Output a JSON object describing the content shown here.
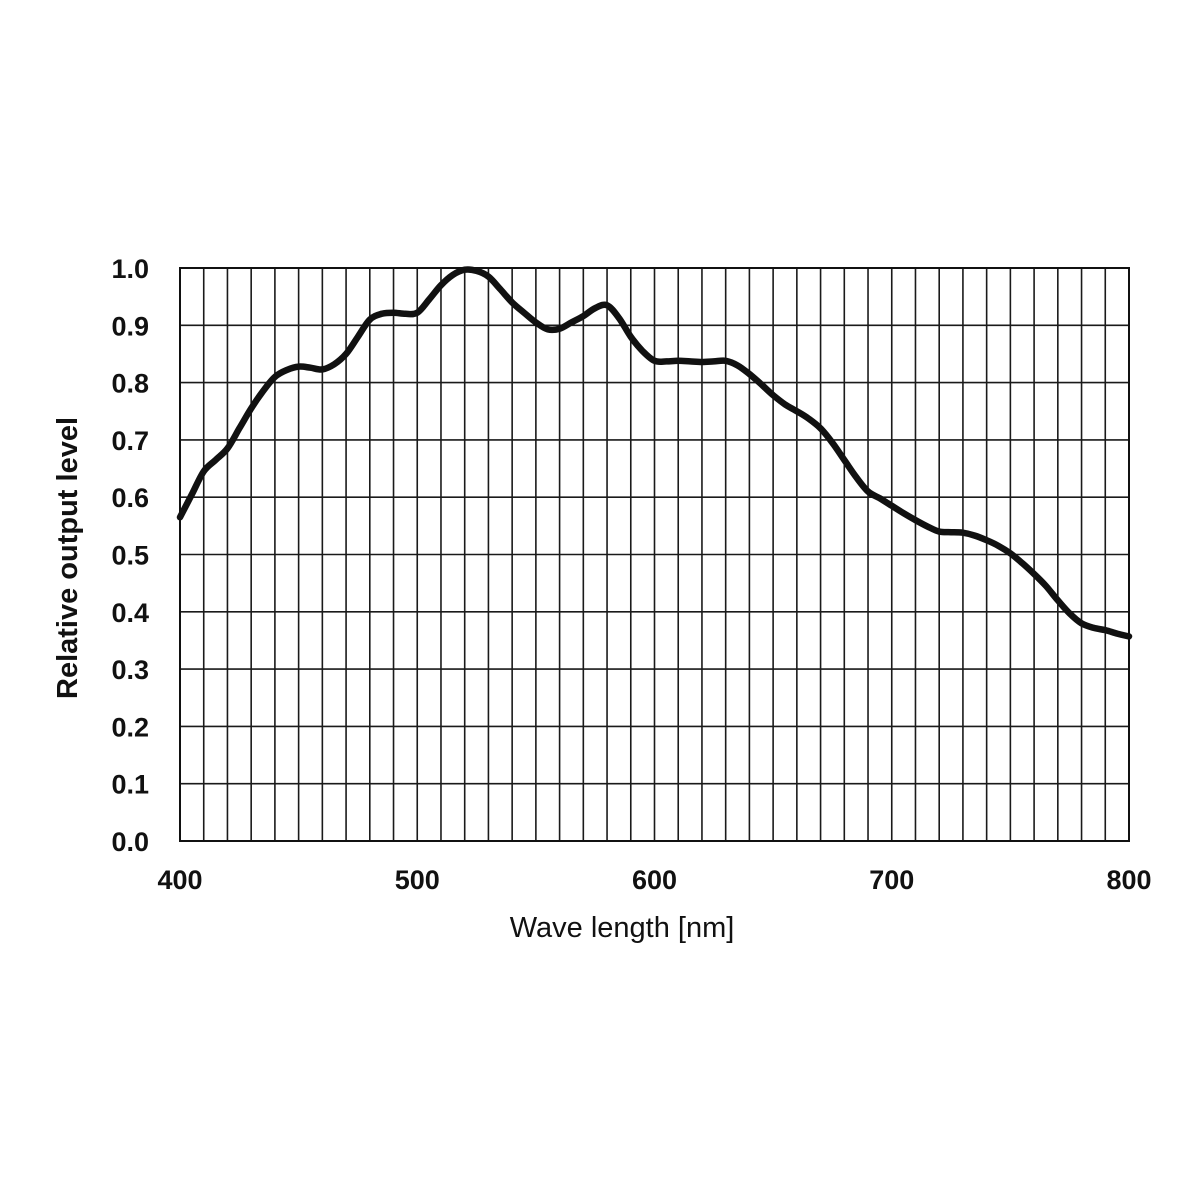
{
  "chart_data": {
    "type": "line",
    "xlabel": "Wave length [nm]",
    "ylabel": "Relative output level",
    "xlim": [
      400,
      800
    ],
    "ylim": [
      0.0,
      1.0
    ],
    "x_ticks": [
      400,
      500,
      600,
      700,
      800
    ],
    "x_tick_labels": [
      "400",
      "500",
      "600",
      "700",
      "800"
    ],
    "y_ticks": [
      0.0,
      0.1,
      0.2,
      0.3,
      0.4,
      0.5,
      0.6,
      0.7,
      0.8,
      0.9,
      1.0
    ],
    "y_tick_labels": [
      "0.0",
      "0.1",
      "0.2",
      "0.3",
      "0.4",
      "0.5",
      "0.6",
      "0.7",
      "0.8",
      "0.9",
      "1.0"
    ],
    "grid": true,
    "x_minor_step": 10,
    "line_color": "#111111",
    "grid_color": "#1a1a1a",
    "series": [
      {
        "x": [
          400,
          405,
          410,
          415,
          420,
          425,
          430,
          435,
          440,
          445,
          450,
          455,
          460,
          465,
          470,
          475,
          480,
          485,
          490,
          495,
          500,
          505,
          510,
          515,
          520,
          525,
          530,
          535,
          540,
          545,
          550,
          555,
          560,
          565,
          570,
          575,
          580,
          585,
          590,
          595,
          600,
          605,
          610,
          615,
          620,
          625,
          630,
          635,
          640,
          645,
          650,
          655,
          660,
          665,
          670,
          675,
          680,
          685,
          690,
          695,
          700,
          705,
          710,
          715,
          720,
          725,
          730,
          735,
          740,
          745,
          750,
          755,
          760,
          765,
          770,
          775,
          780,
          785,
          790,
          795,
          800
        ],
        "values": [
          0.565,
          0.605,
          0.645,
          0.665,
          0.685,
          0.72,
          0.755,
          0.785,
          0.81,
          0.822,
          0.828,
          0.826,
          0.823,
          0.832,
          0.85,
          0.88,
          0.91,
          0.92,
          0.922,
          0.92,
          0.922,
          0.945,
          0.97,
          0.988,
          0.997,
          0.995,
          0.985,
          0.963,
          0.94,
          0.922,
          0.905,
          0.893,
          0.894,
          0.905,
          0.916,
          0.93,
          0.935,
          0.913,
          0.88,
          0.855,
          0.838,
          0.837,
          0.838,
          0.837,
          0.836,
          0.837,
          0.838,
          0.83,
          0.815,
          0.797,
          0.778,
          0.762,
          0.75,
          0.737,
          0.72,
          0.695,
          0.665,
          0.635,
          0.61,
          0.598,
          0.585,
          0.572,
          0.56,
          0.549,
          0.54,
          0.539,
          0.538,
          0.533,
          0.525,
          0.515,
          0.502,
          0.485,
          0.466,
          0.445,
          0.42,
          0.397,
          0.38,
          0.372,
          0.368,
          0.362,
          0.357
        ]
      }
    ]
  }
}
